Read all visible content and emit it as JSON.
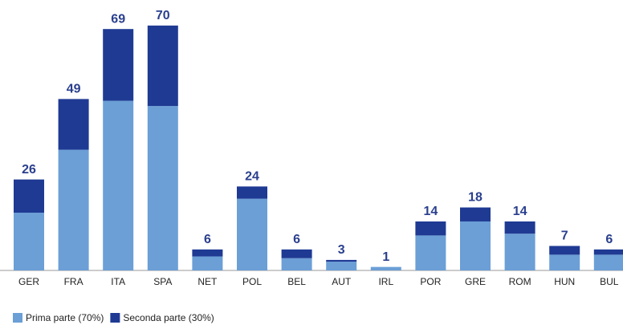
{
  "chart_data": {
    "type": "stacked_bar",
    "categories": [
      "GER",
      "FRA",
      "ITA",
      "SPA",
      "NET",
      "POL",
      "BEL",
      "AUT",
      "IRL",
      "POR",
      "GRE",
      "ROM",
      "HUN",
      "BUL"
    ],
    "series": [
      {
        "name": "Prima parte (70%)",
        "color": "#6b9fd6",
        "values": [
          16.5,
          34.5,
          48.5,
          47,
          4,
          20.5,
          3.5,
          2.5,
          1,
          10,
          14,
          10.5,
          4.5,
          4.5
        ]
      },
      {
        "name": "Seconda parte (30%)",
        "color": "#1f3a93",
        "values": [
          9.5,
          14.5,
          20.5,
          23,
          2,
          3.5,
          2.5,
          0.5,
          0,
          4,
          4,
          3.5,
          2.5,
          1.5
        ]
      }
    ],
    "totals": [
      26,
      49,
      69,
      70,
      6,
      24,
      6,
      3,
      1,
      14,
      18,
      14,
      7,
      6
    ],
    "ylim": [
      0,
      77.3
    ]
  }
}
